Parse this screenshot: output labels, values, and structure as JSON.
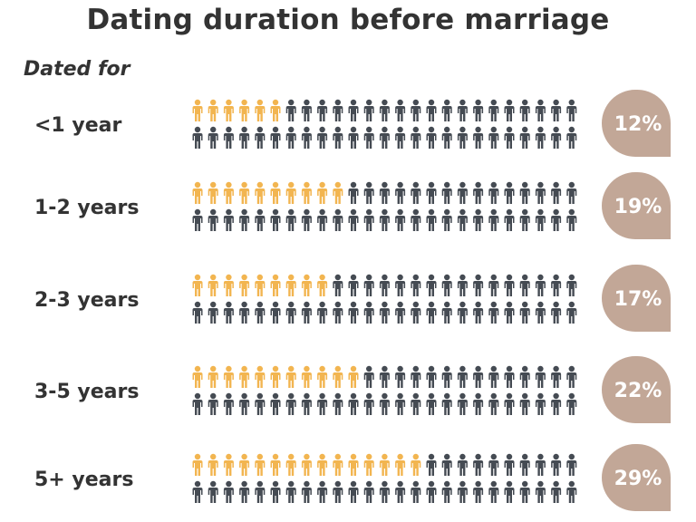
{
  "chart_data": {
    "type": "bar",
    "title": "Dating duration before marriage",
    "subtitle": "Dated for",
    "categories": [
      "<1 year",
      "1-2 years",
      "2-3 years",
      "3-5 years",
      "5+ years"
    ],
    "values": [
      12,
      19,
      17,
      22,
      29
    ],
    "value_labels": [
      "12%",
      "19%",
      "17%",
      "22%",
      "29%"
    ],
    "unit": "%",
    "icons_per_row": 50,
    "icon": "person-icon",
    "colors": {
      "highlight": "#F2B550",
      "base": "#454B53",
      "badge": "#C2A797",
      "text": "#333333"
    }
  }
}
